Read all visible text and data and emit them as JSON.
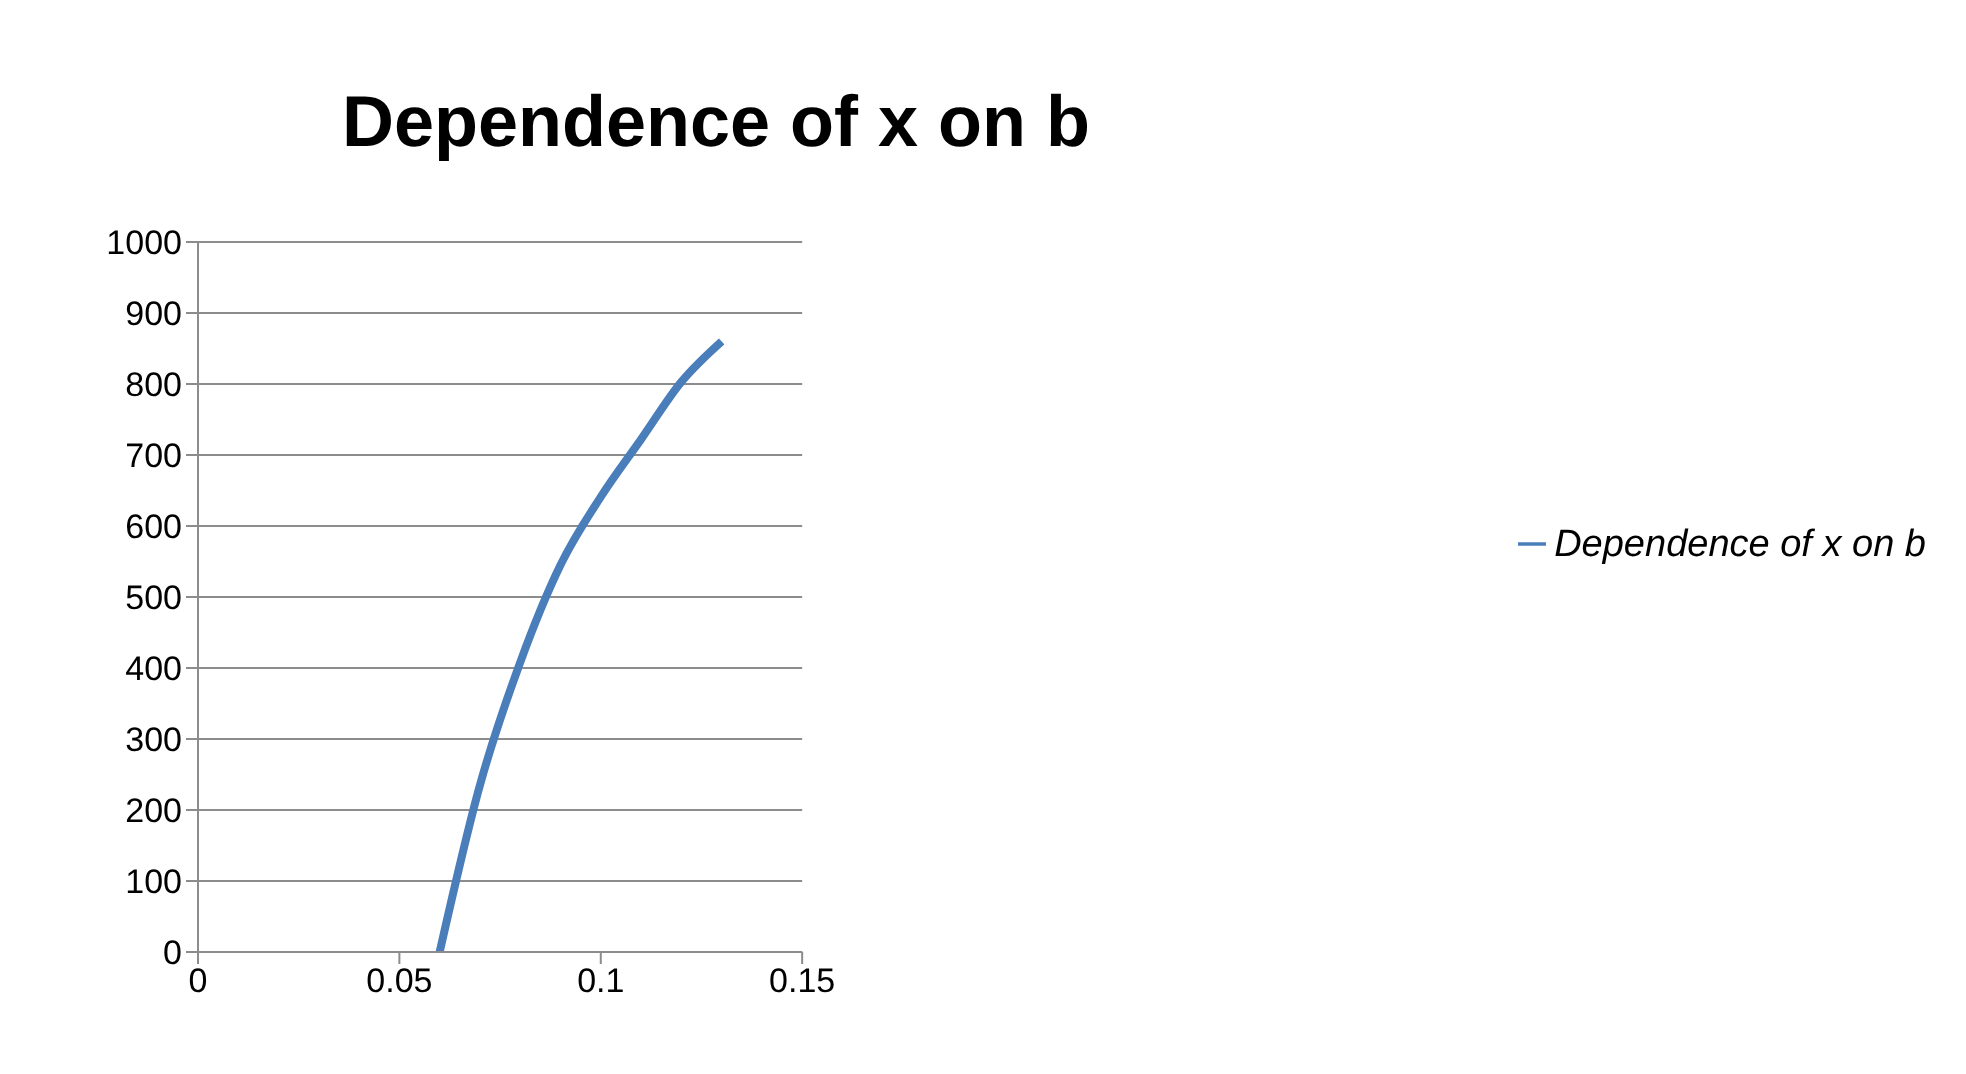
{
  "chart_data": {
    "type": "line",
    "title": "Dependence of x on b",
    "x": [
      0.06,
      0.07,
      0.08,
      0.09,
      0.1,
      0.11,
      0.12,
      0.13
    ],
    "series": [
      {
        "name": "Dependence of x on b",
        "color": "#4a7ebb",
        "values": [
          0,
          235,
          408,
          545,
          641,
          722,
          803,
          860
        ]
      }
    ],
    "xlim": [
      0,
      0.15
    ],
    "xticks": [
      0,
      0.05,
      0.1,
      0.15
    ],
    "ylim": [
      0,
      1000
    ],
    "yticks": [
      0,
      100,
      200,
      300,
      400,
      500,
      600,
      700,
      800,
      900,
      1000
    ],
    "grid": "y",
    "legend": "right",
    "marker": "none",
    "line_style": "solid"
  }
}
